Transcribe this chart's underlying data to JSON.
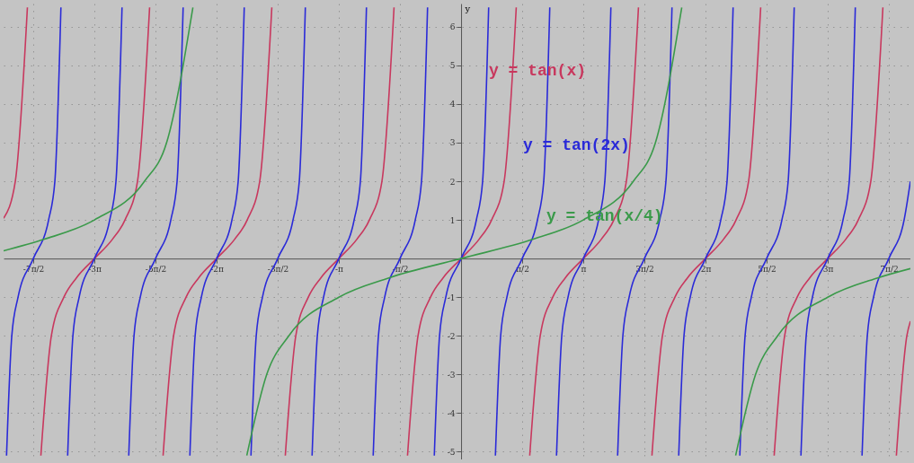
{
  "chart_data": {
    "type": "line",
    "ylabel": "y",
    "xlim": [
      -11.76,
      11.55
    ],
    "ylim": [
      -5.2,
      6.6
    ],
    "xticks": [
      {
        "value": -10.9956,
        "label": "-7π/2"
      },
      {
        "value": -9.4248,
        "label": "-3π"
      },
      {
        "value": -7.854,
        "label": "-5π/2"
      },
      {
        "value": -6.2832,
        "label": "-2π"
      },
      {
        "value": -4.7124,
        "label": "-3π/2"
      },
      {
        "value": -3.1416,
        "label": "-π"
      },
      {
        "value": -1.5708,
        "label": "-π/2"
      },
      {
        "value": 1.5708,
        "label": "π/2"
      },
      {
        "value": 3.1416,
        "label": "π"
      },
      {
        "value": 4.7124,
        "label": "3π/2"
      },
      {
        "value": 6.2832,
        "label": "2π"
      },
      {
        "value": 7.854,
        "label": "5π/2"
      },
      {
        "value": 9.4248,
        "label": "3π"
      },
      {
        "value": 10.9956,
        "label": "7π/2"
      }
    ],
    "yticks": [
      -5,
      -4,
      -3,
      -2,
      -1,
      1,
      2,
      3,
      4,
      5,
      6
    ],
    "grid": true,
    "series": [
      {
        "name": "y = tan(x)",
        "color": "#c8385e",
        "x": [
          -11.76,
          -11.459,
          -11.148,
          -10.9956,
          -10.8018,
          -10.5319,
          -10.2102,
          -9.8884,
          -9.4248,
          -8.9612,
          -8.6394,
          -8.3177,
          -8.0067,
          -7.854,
          -7.6602,
          -7.3903,
          -7.0686,
          -6.7468,
          -6.2832,
          -5.8196,
          -5.4978,
          -5.1761,
          -4.8651,
          -4.7124,
          -4.5186,
          -4.2487,
          -3.927,
          -3.6052,
          -3.1416,
          -2.678,
          -2.3562,
          -2.0345,
          -1.7235,
          -1.5708,
          -1.377,
          -1.1071,
          -0.7854,
          -0.4636,
          0,
          0.4636,
          0.7854,
          1.1071,
          1.4181,
          1.5708,
          1.7646,
          2.0345,
          2.3562,
          2.678,
          3.1416,
          3.6052,
          3.927,
          4.2487,
          4.5597,
          4.7124,
          4.9062,
          5.1761,
          5.4978,
          5.8196,
          6.2832,
          6.7468,
          7.0686,
          7.3903,
          7.7013,
          7.854,
          8.0478,
          8.3177,
          8.6394,
          8.9612,
          9.4248,
          9.8884,
          10.2102,
          10.5319,
          10.8429,
          10.9956,
          11.189,
          11.459,
          11.55
        ],
        "values": [
          1.04,
          2,
          6.5,
          null,
          -5.1,
          -2,
          -1,
          -0.5,
          0,
          0.5,
          1,
          2,
          6.5,
          null,
          -5.1,
          -2,
          -1,
          -0.5,
          0,
          0.5,
          1,
          2,
          6.5,
          null,
          -5.1,
          -2,
          -1,
          -0.5,
          0,
          0.5,
          1,
          2,
          6.5,
          null,
          -5.1,
          -2,
          -1,
          -0.5,
          0,
          0.5,
          1,
          2,
          6.5,
          null,
          -5.1,
          -2,
          -1,
          -0.5,
          0,
          0.5,
          1,
          2,
          6.5,
          null,
          -5.1,
          -2,
          -1,
          -0.5,
          0,
          0.5,
          1,
          2,
          6.5,
          null,
          -5.1,
          -2,
          -1,
          -0.5,
          0,
          0.5,
          1,
          2,
          6.5,
          null,
          -5.1,
          -2,
          -1.62
        ]
      },
      {
        "name": "y = tan(2x)",
        "color": "#2a2ad8",
        "x": [
          -11.6841,
          -11.5492,
          -11.3883,
          -10.9956,
          -10.6029,
          -10.442,
          -10.2865,
          -10.2102,
          -10.1133,
          -9.9784,
          -9.8175,
          -9.4248,
          -9.0321,
          -8.8712,
          -8.7157,
          -8.6394,
          -8.5425,
          -8.4076,
          -8.2467,
          -7.854,
          -7.4613,
          -7.3004,
          -7.1449,
          -7.0686,
          -6.9717,
          -6.8368,
          -6.6759,
          -6.2832,
          -5.8905,
          -5.7296,
          -5.5741,
          -5.4978,
          -5.4009,
          -5.266,
          -5.1051,
          -4.7124,
          -4.3197,
          -4.1588,
          -4.0033,
          -3.927,
          -3.8301,
          -3.6952,
          -3.5343,
          -3.1416,
          -2.7489,
          -2.588,
          -2.4325,
          -2.3562,
          -2.2593,
          -2.1244,
          -1.9635,
          -1.5708,
          -1.1781,
          -1.0172,
          -0.8617,
          -0.7854,
          -0.6885,
          -0.5536,
          -0.3927,
          0,
          0.3927,
          0.5536,
          0.7091,
          0.7854,
          0.8823,
          1.0172,
          1.1781,
          1.5708,
          1.9635,
          2.1244,
          2.2799,
          2.3562,
          2.4531,
          2.588,
          2.7489,
          3.1416,
          3.5343,
          3.6952,
          3.8507,
          3.927,
          4.0239,
          4.1588,
          4.3197,
          4.7124,
          5.1051,
          5.266,
          5.4215,
          5.4978,
          5.5947,
          5.7296,
          5.8905,
          6.2832,
          6.6759,
          6.8368,
          6.9923,
          7.0686,
          7.1655,
          7.3004,
          7.4613,
          7.854,
          8.2467,
          8.4076,
          8.5631,
          8.6394,
          8.7363,
          8.8712,
          9.0321,
          9.4248,
          9.8175,
          9.9784,
          10.1339,
          10.2102,
          10.3071,
          10.442,
          10.6029,
          10.9956,
          11.3883,
          11.5492
        ],
        "values": [
          -5.1,
          -2,
          -1,
          0,
          1,
          2,
          6.5,
          null,
          -5.1,
          -2,
          -1,
          0,
          1,
          2,
          6.5,
          null,
          -5.1,
          -2,
          -1,
          0,
          1,
          2,
          6.5,
          null,
          -5.1,
          -2,
          -1,
          0,
          1,
          2,
          6.5,
          null,
          -5.1,
          -2,
          -1,
          0,
          1,
          2,
          6.5,
          null,
          -5.1,
          -2,
          -1,
          0,
          1,
          2,
          6.5,
          null,
          -5.1,
          -2,
          -1,
          0,
          1,
          2,
          6.5,
          null,
          -5.1,
          -2,
          -1,
          0,
          1,
          2,
          6.5,
          null,
          -5.1,
          -2,
          -1,
          0,
          1,
          2,
          6.5,
          null,
          -5.1,
          -2,
          -1,
          0,
          1,
          2,
          6.5,
          null,
          -5.1,
          -2,
          -1,
          0,
          1,
          2,
          6.5,
          null,
          -5.1,
          -2,
          -1,
          0,
          1,
          2,
          6.5,
          null,
          -5.1,
          -2,
          -1,
          0,
          1,
          2,
          6.5,
          null,
          -5.1,
          -2,
          -1,
          0,
          1,
          2,
          6.5,
          null,
          -5.1,
          -2,
          -1,
          0,
          1,
          2
        ]
      },
      {
        "name": "y = tan(x/4)",
        "color": "#3a9a4a",
        "x": [
          -11.76,
          -10.711,
          -9.4248,
          -8.138,
          -7.57,
          -6.894,
          -6.2832,
          -5.508,
          -4.996,
          -4.428,
          -3.1416,
          -1.8546,
          0,
          1.8546,
          3.1416,
          4.428,
          4.996,
          5.6724,
          6.2832,
          7.058,
          7.57,
          8.138,
          9.4248,
          10.711,
          11.55
        ],
        "values": [
          0.2,
          0.5,
          1,
          2,
          3,
          6.5,
          null,
          -5.1,
          -3,
          -2,
          -1,
          -0.5,
          0,
          0.5,
          1,
          2,
          3,
          6.5,
          null,
          -5.1,
          -3,
          -2,
          -1,
          -0.5,
          -0.26
        ]
      }
    ]
  }
}
